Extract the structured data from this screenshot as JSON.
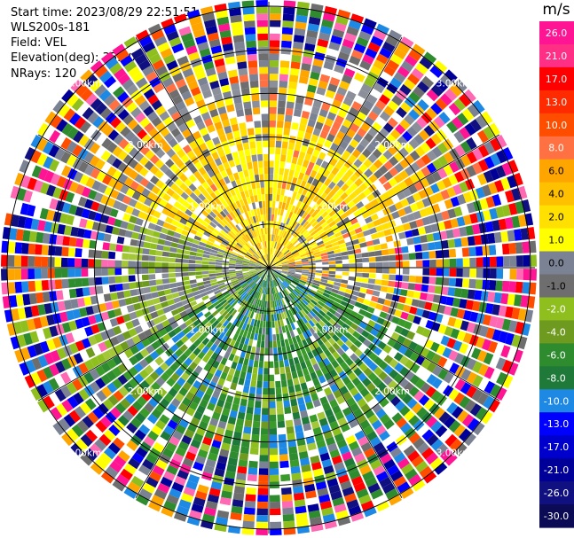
{
  "header": {
    "start_time": "Start time: 2023/08/29 22:51:51",
    "instrument": "WLS200s-181",
    "field": "Field: VEL",
    "elevation": "Elevation(deg): 35.30",
    "nrays": "NRays: 120"
  },
  "chart_data": {
    "type": "ppi",
    "field": "VEL",
    "nrays": 120,
    "range_rings_km": [
      0.5,
      1.0,
      1.5,
      2.0,
      2.5,
      3.0
    ],
    "ring_label_text": [
      "1.00km",
      "2.00km",
      "3.00km"
    ],
    "colorbar": {
      "unit": "m/s",
      "ticks": [
        "26.0",
        "21.0",
        "17.0",
        "13.0",
        "10.0",
        "8.0",
        "6.0",
        "4.0",
        "2.0",
        "1.0",
        "0.0",
        "-1.0",
        "-2.0",
        "-4.0",
        "-6.0",
        "-8.0",
        "-10.0",
        "-13.0",
        "-17.0",
        "-21.0",
        "-26.0",
        "-30.0"
      ],
      "colors": [
        "#ff1493",
        "#ff2f85",
        "#ff0000",
        "#ff2a00",
        "#ff4d00",
        "#ff7043",
        "#ffa500",
        "#ffc000",
        "#ffe000",
        "#ffff00",
        "#7b8294",
        "#6e6e6e",
        "#8fbf1f",
        "#6f9a20",
        "#2e8b2e",
        "#1f7a3a",
        "#1e88e5",
        "#0000ff",
        "#0000cc",
        "#000099",
        "#101080",
        "#0b0b55"
      ]
    },
    "near_field_pattern": {
      "north": "yellow-orange (positive)",
      "west": "olive-gray (near zero)",
      "south": "green (negative)",
      "east": "gray/yellow mix"
    },
    "outer_pattern": "random noise colors"
  },
  "colors": {
    "grid": "#000000",
    "noise_palette": [
      "#ff1493",
      "#ff0000",
      "#ff4d00",
      "#ffa500",
      "#ffff00",
      "#7b8294",
      "#2e8b2e",
      "#8fbf1f",
      "#1e88e5",
      "#0000ff",
      "#000099",
      "#101080",
      "#ff69b4",
      "#ffffff",
      "#6e6e6e"
    ]
  }
}
